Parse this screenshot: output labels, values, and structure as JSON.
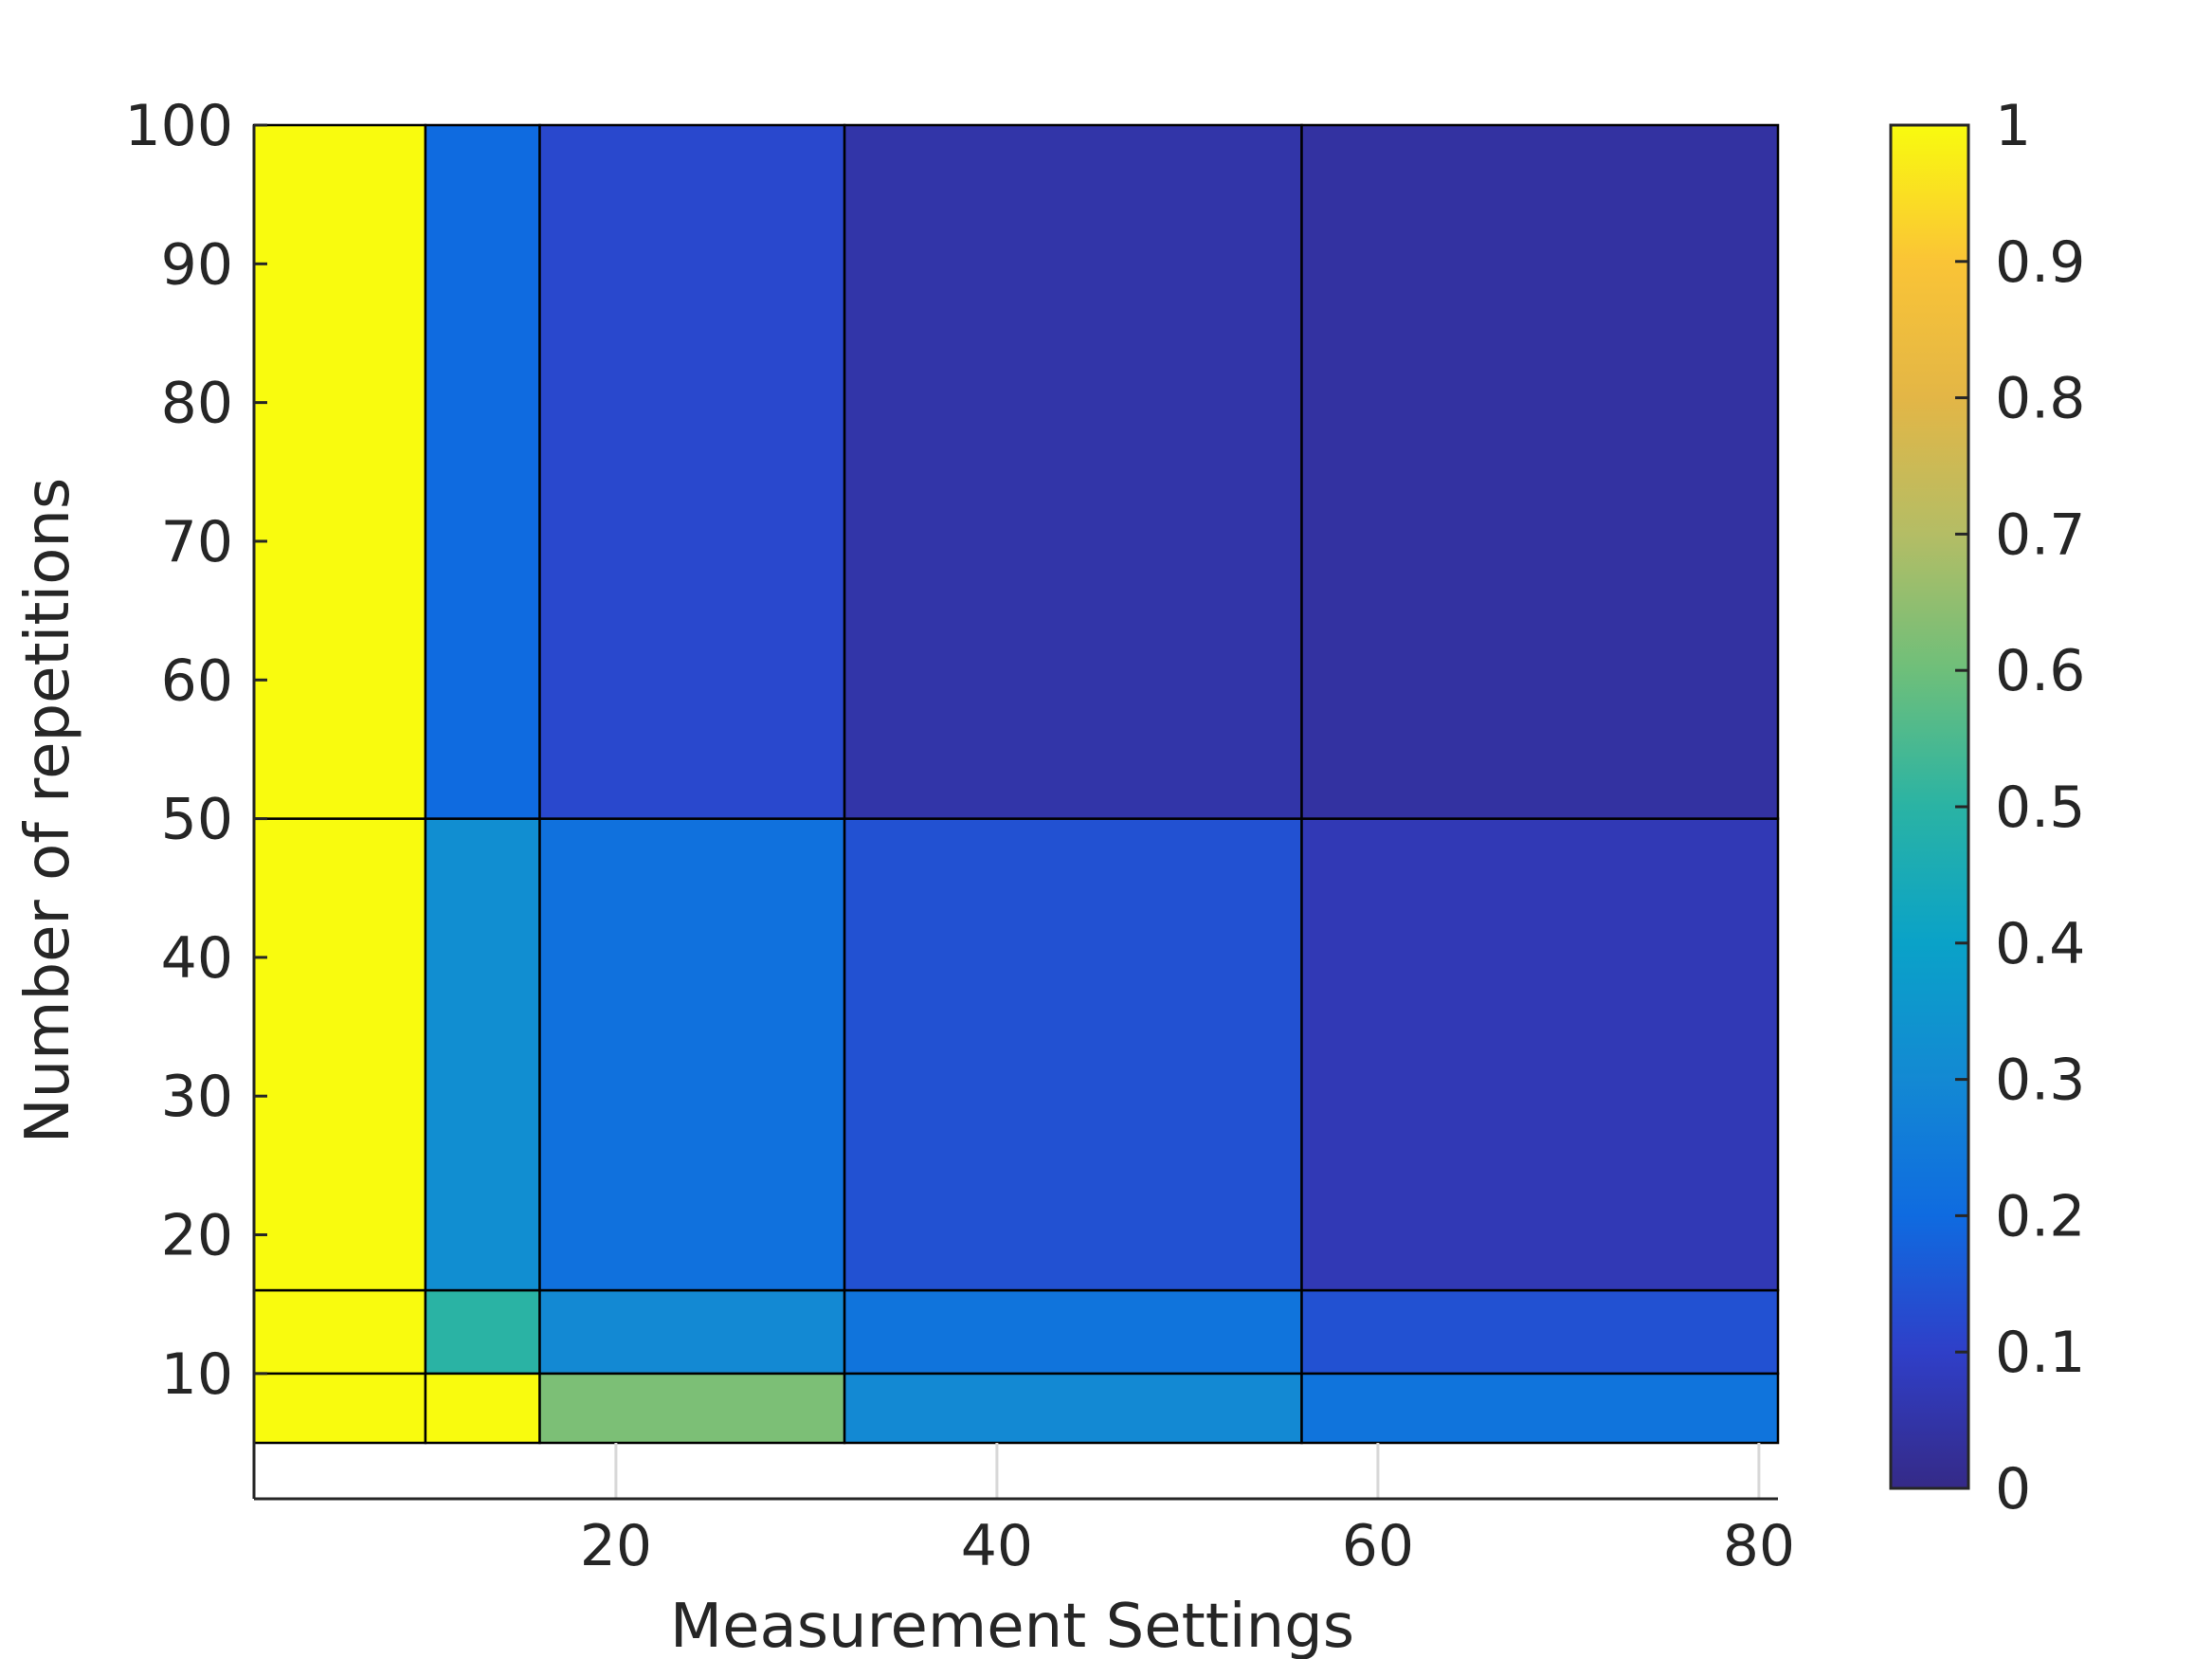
{
  "chart_data": {
    "type": "heatmap",
    "xlabel": "Measurement Settings",
    "ylabel": "Number of repetitions",
    "xlim": [
      1,
      81
    ],
    "ylim": [
      5,
      100
    ],
    "x_axis_extent": [
      1,
      81
    ],
    "x_ticks": [
      20,
      40,
      60,
      80
    ],
    "y_ticks": [
      10,
      20,
      30,
      40,
      50,
      60,
      70,
      80,
      90,
      100
    ],
    "x_edges": [
      1,
      10,
      16,
      32,
      56,
      81
    ],
    "y_edges": [
      5,
      10,
      16,
      50,
      100
    ],
    "values": [
      [
        1.0,
        1.0,
        0.62,
        0.3,
        0.23
      ],
      [
        1.0,
        0.5,
        0.3,
        0.23,
        0.14
      ],
      [
        1.0,
        0.32,
        0.22,
        0.14,
        0.07
      ],
      [
        1.0,
        0.2,
        0.12,
        0.05,
        0.04
      ]
    ],
    "colorbar": {
      "min": 0,
      "max": 1,
      "ticks": [
        "0",
        "0.1",
        "0.2",
        "0.3",
        "0.4",
        "0.5",
        "0.6",
        "0.7",
        "0.8",
        "0.9",
        "1"
      ],
      "colormap": "parula"
    },
    "grid": false
  }
}
